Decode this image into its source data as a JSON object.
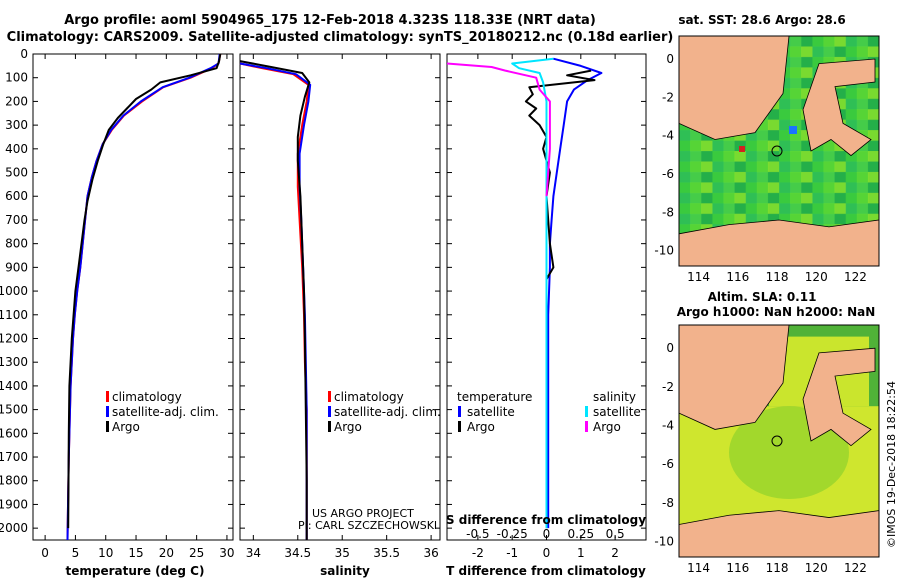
{
  "header": {
    "line1": "Argo profile: aoml 5904965_175 12-Feb-2018 4.323S 118.33E (NRT data)",
    "line2": "Climatology: CARS2009. Satellite-adjusted climatology: synTS_20180212.nc (0.18d earlier)"
  },
  "colors": {
    "climatology": "#ff0000",
    "satellite": "#0000ff",
    "argo": "#000000",
    "sat_salinity": "#00e5ff",
    "argo_salinity": "#ff00ff",
    "land": "#f2b28c",
    "sea_cool": "#3fbf3f",
    "sea_warm": "#c8e62a"
  },
  "chart_data": [
    {
      "type": "line",
      "name": "temperature",
      "xlabel": "temperature (deg C)",
      "xlim": [
        -2,
        31
      ],
      "xticks": [
        0,
        5,
        10,
        15,
        20,
        25,
        30
      ],
      "ylim": [
        2050,
        0
      ],
      "yticks": [
        0,
        100,
        200,
        300,
        400,
        500,
        600,
        700,
        800,
        900,
        1000,
        1100,
        1200,
        1300,
        1400,
        1500,
        1600,
        1700,
        1800,
        1900,
        2000
      ],
      "legend": [
        "climatology",
        "satellite-adj. clim.",
        "Argo"
      ],
      "series": [
        {
          "name": "climatology",
          "color": "#ff0000",
          "x": [
            28.9,
            28.6,
            27.5,
            24.0,
            19.5,
            16.0,
            13.0,
            11.0,
            9.5,
            8.5,
            7.7,
            7.0,
            6.6,
            6.2,
            5.8,
            5.3,
            4.9,
            4.6,
            4.4,
            4.2,
            4.1,
            4.0,
            3.9,
            3.8,
            3.7
          ],
          "y": [
            0,
            40,
            60,
            100,
            140,
            200,
            260,
            320,
            380,
            450,
            520,
            600,
            700,
            800,
            900,
            1000,
            1100,
            1200,
            1300,
            1400,
            1500,
            1600,
            1700,
            1850,
            2050
          ]
        },
        {
          "name": "satellite-adj. clim.",
          "color": "#0000ff",
          "x": [
            28.8,
            28.6,
            27.3,
            23.8,
            19.4,
            15.8,
            12.9,
            10.9,
            9.5,
            8.5,
            7.7,
            7.0,
            6.6,
            6.2,
            5.8,
            5.3,
            4.9,
            4.6,
            4.4,
            4.2,
            4.1,
            4.0,
            3.9,
            3.8,
            3.7
          ],
          "y": [
            0,
            40,
            60,
            100,
            140,
            200,
            260,
            320,
            380,
            450,
            520,
            600,
            700,
            800,
            900,
            1000,
            1100,
            1200,
            1300,
            1400,
            1500,
            1600,
            1700,
            1850,
            2050
          ]
        },
        {
          "name": "Argo",
          "color": "#000000",
          "x": [
            28.9,
            28.7,
            28.3,
            24.0,
            19.0,
            17.5,
            15.0,
            13.5,
            12.0,
            10.5,
            9.6,
            8.7,
            7.8,
            7.0,
            6.5,
            6.0,
            5.5,
            5.0,
            4.7,
            4.4,
            4.2,
            4.0,
            3.9,
            3.8
          ],
          "y": [
            0,
            30,
            60,
            90,
            120,
            150,
            190,
            230,
            270,
            320,
            380,
            450,
            530,
            620,
            700,
            800,
            900,
            1000,
            1100,
            1200,
            1300,
            1400,
            1600,
            2000
          ]
        }
      ]
    },
    {
      "type": "line",
      "name": "salinity",
      "xlabel": "salinity",
      "xlim": [
        33.85,
        36.1
      ],
      "xticks": [
        34,
        34.5,
        35,
        35.5,
        36
      ],
      "xticklabels": [
        "34",
        "34.5",
        "35",
        "35.5",
        "36"
      ],
      "ylim": [
        2050,
        0
      ],
      "legend": [
        "climatology",
        "satellite-adj. clim.",
        "Argo"
      ],
      "series": [
        {
          "name": "climatology",
          "color": "#ff0000",
          "x": [
            33.85,
            34.1,
            34.45,
            34.62,
            34.6,
            34.55,
            34.5,
            34.5,
            34.52,
            34.55,
            34.57,
            34.58,
            34.6,
            34.6,
            34.6
          ],
          "y": [
            40,
            60,
            85,
            130,
            200,
            300,
            420,
            560,
            700,
            900,
            1100,
            1300,
            1500,
            1800,
            2050
          ]
        },
        {
          "name": "satellite-adj. clim.",
          "color": "#0000ff",
          "x": [
            33.85,
            34.15,
            34.48,
            34.64,
            34.62,
            34.57,
            34.52,
            34.52,
            34.54,
            34.56,
            34.58,
            34.59,
            34.6,
            34.6,
            34.6
          ],
          "y": [
            40,
            60,
            85,
            130,
            200,
            300,
            420,
            560,
            700,
            900,
            1100,
            1300,
            1500,
            1800,
            2050
          ]
        },
        {
          "name": "Argo",
          "color": "#000000",
          "x": [
            33.85,
            34.2,
            34.55,
            34.63,
            34.58,
            34.53,
            34.5,
            34.5,
            34.53,
            34.55,
            34.57,
            34.58,
            34.59,
            34.6,
            34.6
          ],
          "y": [
            30,
            55,
            80,
            120,
            180,
            260,
            350,
            450,
            600,
            800,
            1000,
            1200,
            1500,
            1800,
            2050
          ]
        }
      ]
    },
    {
      "type": "line",
      "name": "differences",
      "xlabel": "T difference from climatology",
      "xlabel2": "S difference from climatology",
      "xticks": [
        -2,
        -1,
        0,
        1,
        2
      ],
      "xticks2": [
        -0.5,
        -0.25,
        0,
        0.25,
        0.5
      ],
      "xticklabels2": [
        "-0.5",
        "-0.25",
        "0",
        "0.25",
        "0.5"
      ],
      "xlim": [
        -2.9,
        2.9
      ],
      "ylim": [
        2050,
        0
      ],
      "legend_left_title": "temperature",
      "legend_left": [
        "satellite",
        "Argo"
      ],
      "legend_right_title": "salinity",
      "legend_right": [
        "satellite",
        "Argo"
      ],
      "series": [
        {
          "name": "temperature satellite",
          "color": "#0000ff",
          "x": [
            0.2,
            1.0,
            1.6,
            1.2,
            0.8,
            0.6,
            0.5,
            0.4,
            0.3,
            0.2,
            0.15,
            0.1,
            0.1,
            0.05,
            0.05,
            0.05,
            0.05
          ],
          "y": [
            20,
            50,
            80,
            110,
            150,
            200,
            300,
            400,
            500,
            600,
            700,
            800,
            900,
            1100,
            1400,
            1700,
            2000
          ]
        },
        {
          "name": "temperature Argo",
          "color": "#000000",
          "x": [
            1.3,
            0.6,
            1.4,
            -0.5,
            -0.4,
            -0.6,
            -0.3,
            -0.5,
            -0.2,
            0.0,
            -0.1,
            0.1,
            0.0,
            0.1,
            0.2,
            0.0,
            0.0,
            0.0,
            0.0
          ],
          "y": [
            70,
            90,
            110,
            140,
            170,
            200,
            230,
            260,
            300,
            350,
            400,
            500,
            600,
            800,
            900,
            950,
            1200,
            1600,
            2000
          ]
        },
        {
          "name": "salinity satellite",
          "color": "#00e5ff",
          "x": [
            0.2,
            -1.0,
            -0.8,
            -0.2,
            -0.1,
            0.0,
            0.0,
            0.0,
            0.0
          ],
          "y": [
            20,
            40,
            60,
            80,
            120,
            200,
            400,
            1000,
            2000
          ]
        },
        {
          "name": "salinity Argo",
          "color": "#ff00ff",
          "x": [
            -2.9,
            -1.6,
            -1.2,
            -0.3,
            -0.2,
            0.1,
            0.1,
            0.0
          ],
          "y": [
            40,
            55,
            70,
            100,
            150,
            200,
            400,
            600
          ]
        }
      ]
    }
  ],
  "notes": {
    "line1": "US ARGO PROJECT",
    "line2": "PI: CARL SZCZECHOWSKI"
  },
  "map_top": {
    "title": "sat. SST: 28.6 Argo: 28.6",
    "xticks": [
      "114",
      "116",
      "118",
      "120",
      "122"
    ],
    "yticks": [
      "0",
      "-2",
      "-4",
      "-6",
      "-8",
      "-10"
    ]
  },
  "map_bottom": {
    "title1": "Altim. SLA: 0.11",
    "title2": "Argo h1000: NaN h2000: NaN",
    "xticks": [
      "114",
      "116",
      "118",
      "120",
      "122"
    ],
    "yticks": [
      "0",
      "-2",
      "-4",
      "-6",
      "-8",
      "-10"
    ]
  },
  "footer": {
    "stamp": "©IMOS 19-Dec-2018 18:22:54"
  }
}
